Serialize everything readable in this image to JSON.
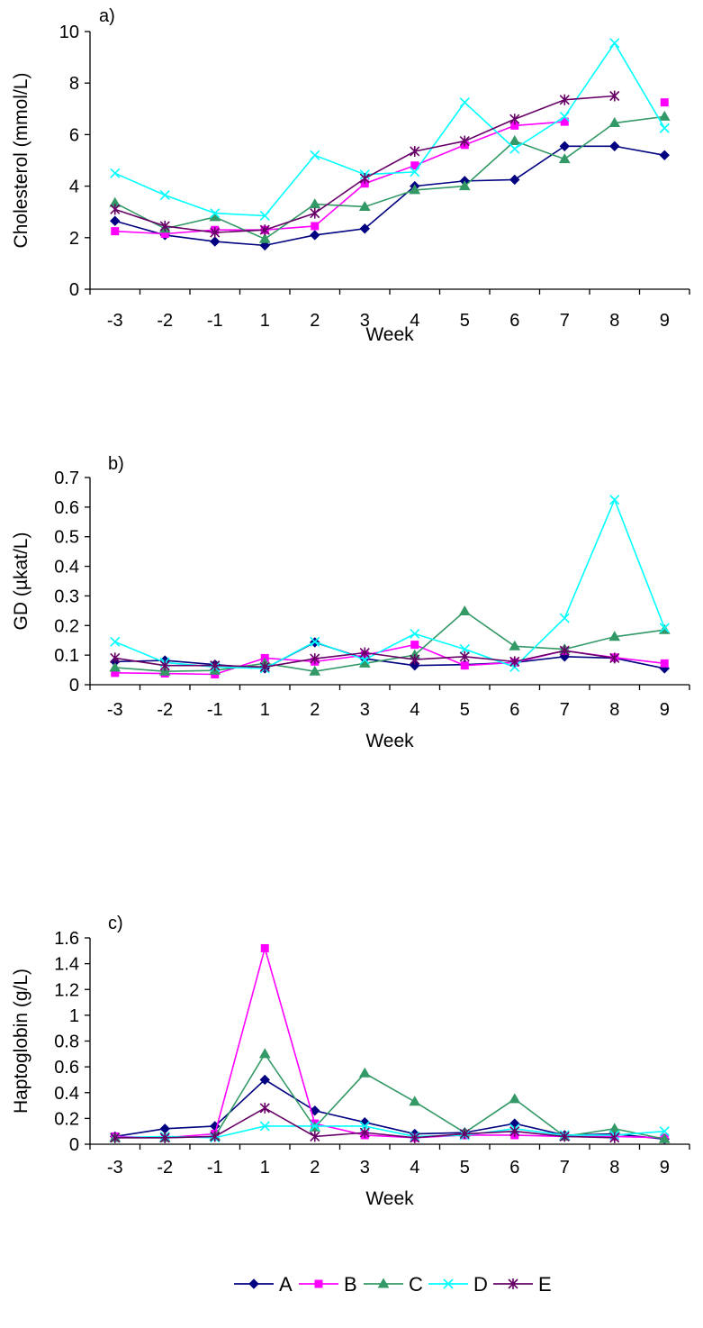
{
  "series_styles": [
    {
      "name": "A",
      "color": "#000080",
      "marker": "diamond"
    },
    {
      "name": "B",
      "color": "#ff00ff",
      "marker": "square"
    },
    {
      "name": "C",
      "color": "#339966",
      "marker": "triangle"
    },
    {
      "name": "D",
      "color": "#00ffff",
      "marker": "x"
    },
    {
      "name": "E",
      "color": "#660066",
      "marker": "star"
    }
  ],
  "chart_data": [
    {
      "type": "line",
      "panel_label": "a)",
      "title": "",
      "xlabel": "Week",
      "ylabel": "Cholesterol (mmol/L)",
      "ylim": [
        0,
        10
      ],
      "yticks": [
        "0",
        "2",
        "4",
        "6",
        "8",
        "10"
      ],
      "ytick_values": [
        0,
        2,
        4,
        6,
        8,
        10
      ],
      "categories": [
        "-3",
        "-2",
        "-1",
        "1",
        "2",
        "3",
        "4",
        "5",
        "6",
        "7",
        "8",
        "9"
      ],
      "grid": false,
      "series": [
        {
          "name": "A",
          "values": [
            2.65,
            2.1,
            1.85,
            1.7,
            2.1,
            2.35,
            4.0,
            4.2,
            4.25,
            5.55,
            5.55,
            5.2
          ]
        },
        {
          "name": "B",
          "values": [
            2.25,
            2.15,
            2.3,
            2.3,
            2.45,
            4.1,
            4.8,
            5.6,
            6.35,
            6.5,
            null,
            7.25
          ]
        },
        {
          "name": "C",
          "values": [
            3.35,
            2.35,
            2.8,
            1.95,
            3.3,
            3.2,
            3.85,
            4.0,
            5.75,
            5.05,
            6.45,
            6.7
          ]
        },
        {
          "name": "D",
          "values": [
            4.5,
            3.65,
            2.95,
            2.85,
            5.2,
            4.45,
            4.55,
            7.25,
            5.45,
            6.7,
            9.55,
            6.25
          ]
        },
        {
          "name": "E",
          "values": [
            3.1,
            2.45,
            2.2,
            2.3,
            2.95,
            4.3,
            5.35,
            5.75,
            6.6,
            7.35,
            7.5,
            null
          ]
        }
      ]
    },
    {
      "type": "line",
      "panel_label": "b)",
      "title": "",
      "xlabel": "Week",
      "ylabel": "GD (µkat/L)",
      "ylim": [
        0,
        0.7
      ],
      "yticks": [
        "0",
        "0.1",
        "0.2",
        "0.3",
        "0.4",
        "0.5",
        "0.6",
        "0.7"
      ],
      "ytick_values": [
        0,
        0.1,
        0.2,
        0.3,
        0.4,
        0.5,
        0.6,
        0.7
      ],
      "categories": [
        "-3",
        "-2",
        "-1",
        "1",
        "2",
        "3",
        "4",
        "5",
        "6",
        "7",
        "8",
        "9"
      ],
      "grid": false,
      "series": [
        {
          "name": "A",
          "values": [
            0.078,
            0.082,
            0.068,
            0.055,
            0.143,
            0.088,
            0.065,
            0.068,
            0.075,
            0.095,
            0.09,
            0.055
          ]
        },
        {
          "name": "B",
          "values": [
            0.04,
            0.038,
            0.035,
            0.09,
            0.078,
            0.1,
            0.135,
            0.065,
            0.075,
            0.115,
            0.092,
            0.072
          ]
        },
        {
          "name": "C",
          "values": [
            0.058,
            0.045,
            0.048,
            0.072,
            0.045,
            0.072,
            0.1,
            0.248,
            0.13,
            0.12,
            0.162,
            0.185
          ]
        },
        {
          "name": "D",
          "values": [
            0.145,
            0.075,
            0.06,
            0.055,
            0.145,
            0.085,
            0.172,
            0.12,
            0.06,
            0.225,
            0.625,
            0.192
          ]
        },
        {
          "name": "E",
          "values": [
            0.09,
            0.065,
            0.065,
            0.06,
            0.088,
            0.108,
            0.085,
            0.095,
            0.078,
            0.115,
            0.09,
            null
          ]
        }
      ]
    },
    {
      "type": "line",
      "panel_label": "c)",
      "title": "",
      "xlabel": "Week",
      "ylabel": "Haptoglobin (g/L)",
      "ylim": [
        0,
        1.6
      ],
      "yticks": [
        "0",
        "0.2",
        "0.4",
        "0.6",
        "0.8",
        "1",
        "1.2",
        "1.4",
        "1.6"
      ],
      "ytick_values": [
        0,
        0.2,
        0.4,
        0.6,
        0.8,
        1.0,
        1.2,
        1.4,
        1.6
      ],
      "categories": [
        "-3",
        "-2",
        "-1",
        "1",
        "2",
        "3",
        "4",
        "5",
        "6",
        "7",
        "8",
        "9"
      ],
      "grid": false,
      "series": [
        {
          "name": "A",
          "values": [
            0.06,
            0.12,
            0.14,
            0.5,
            0.26,
            0.17,
            0.08,
            0.09,
            0.16,
            0.07,
            0.08,
            0.04
          ]
        },
        {
          "name": "B",
          "values": [
            0.06,
            0.05,
            0.08,
            1.52,
            0.16,
            0.07,
            0.05,
            0.07,
            0.07,
            0.06,
            0.06,
            0.05
          ]
        },
        {
          "name": "C",
          "values": [
            0.05,
            0.05,
            0.06,
            0.7,
            0.13,
            0.55,
            0.33,
            0.09,
            0.35,
            0.06,
            0.12,
            0.04
          ]
        },
        {
          "name": "D",
          "values": [
            0.05,
            0.06,
            0.05,
            0.14,
            0.14,
            0.14,
            0.06,
            0.07,
            0.12,
            0.07,
            0.07,
            0.1
          ]
        },
        {
          "name": "E",
          "values": [
            0.05,
            0.05,
            0.06,
            0.28,
            0.06,
            0.09,
            0.05,
            0.08,
            0.1,
            0.06,
            0.05,
            null
          ]
        }
      ]
    }
  ]
}
